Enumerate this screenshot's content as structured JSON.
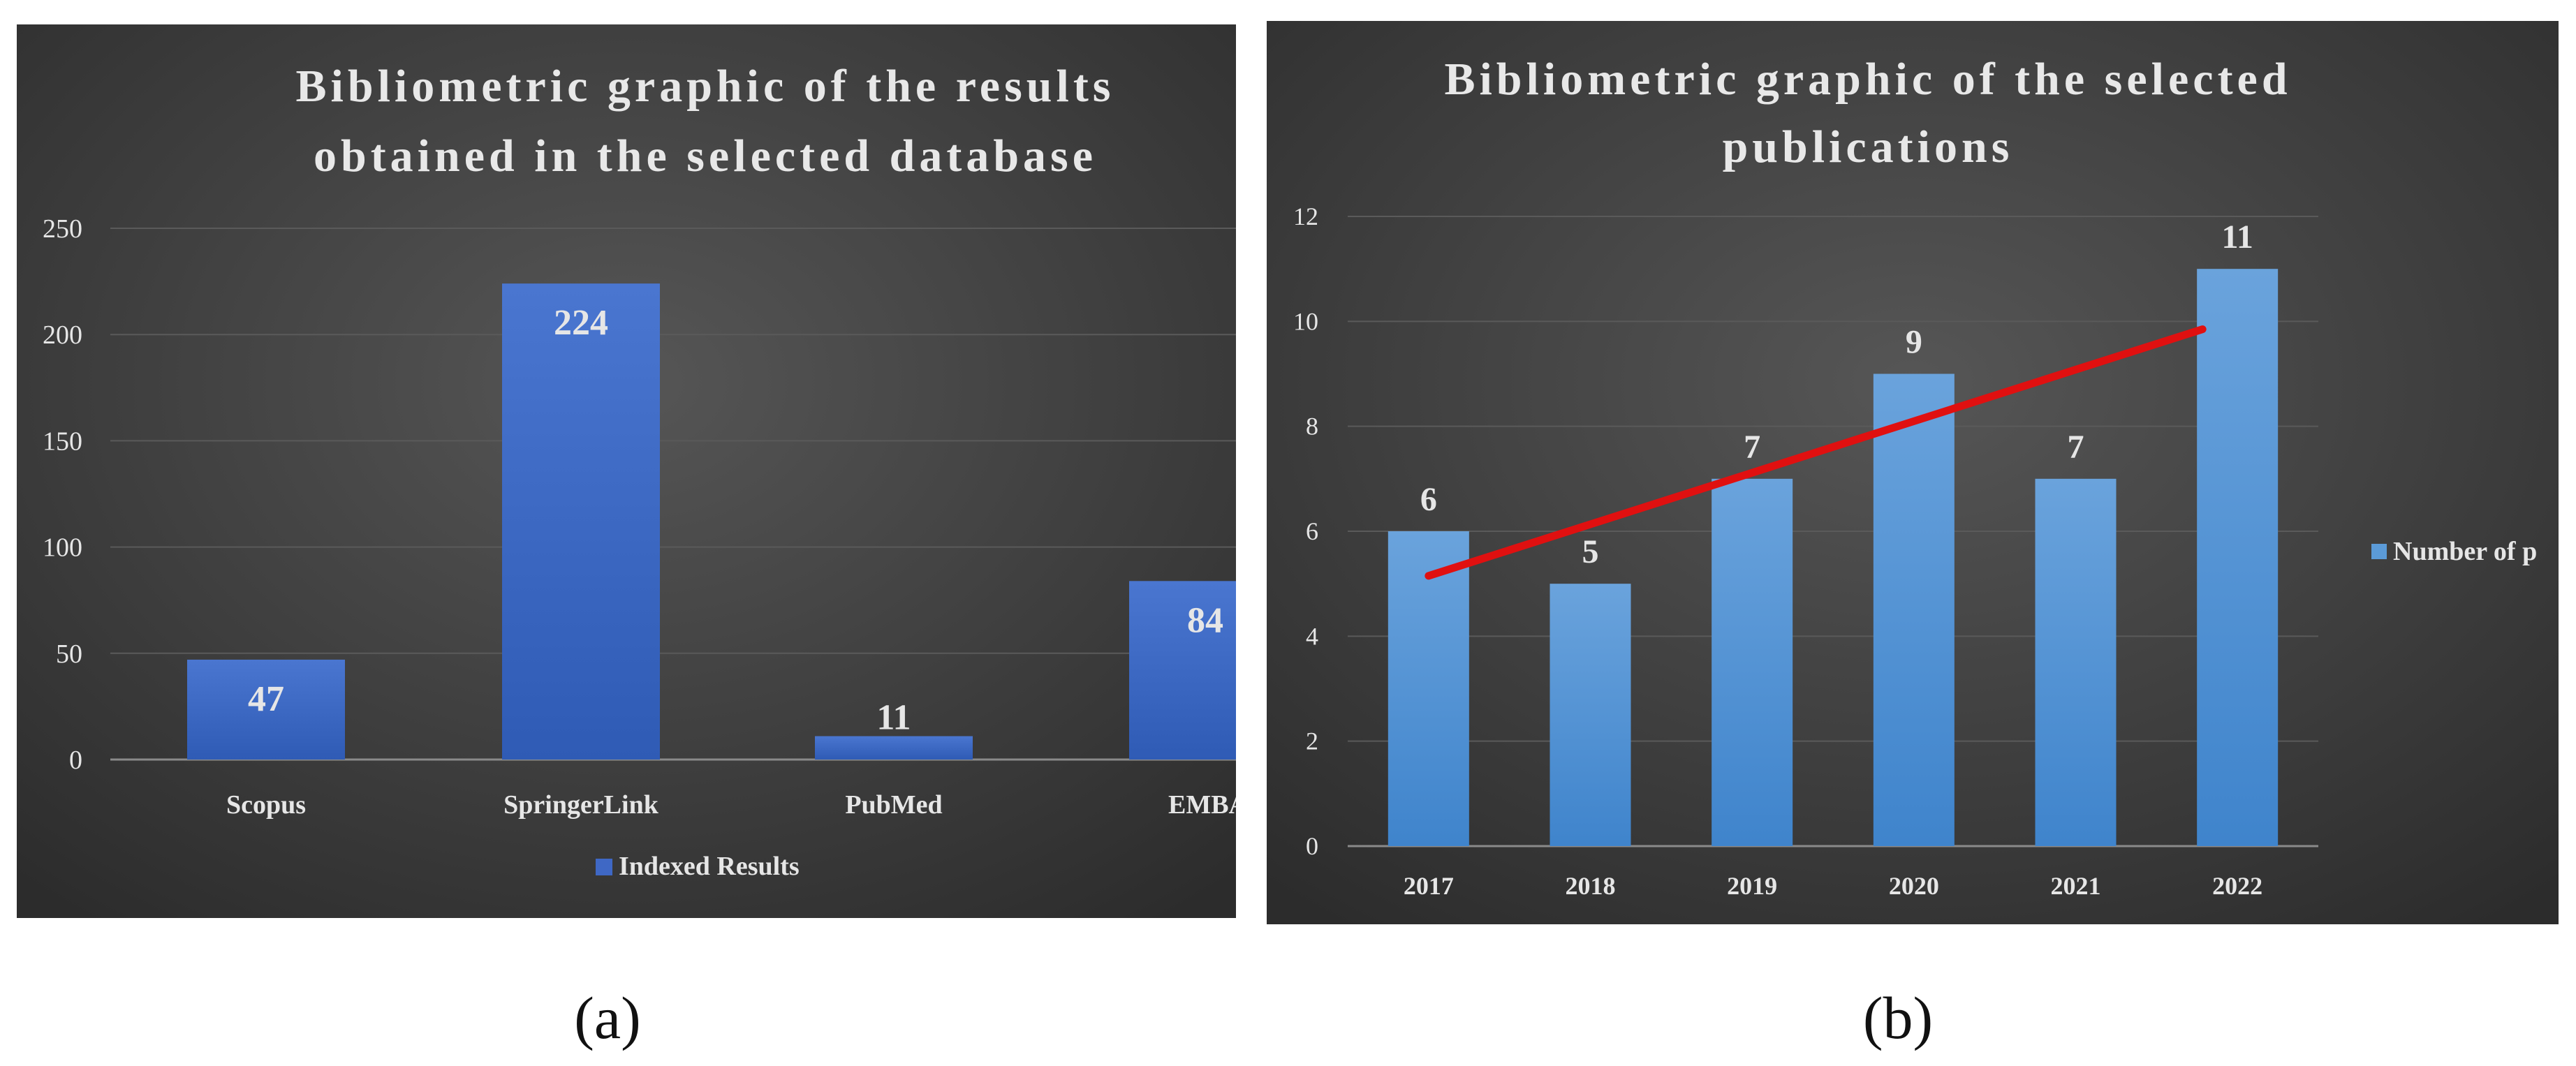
{
  "chart_data": [
    {
      "type": "bar",
      "panel_label": "a",
      "title_lines": [
        "Bibliometric graphic of the results",
        "obtained in the selected database"
      ],
      "categories": [
        "Scopus",
        "SpringerLink",
        "PubMed",
        "EMBA"
      ],
      "series": [
        {
          "name": "Indexed Results",
          "values": [
            47,
            224,
            11,
            84
          ]
        }
      ],
      "data_labels": [
        "47",
        "224",
        "11",
        "84"
      ],
      "ylim": [
        0,
        250
      ],
      "yticks": [
        "0",
        "50",
        "100",
        "150",
        "200",
        "250"
      ],
      "grid": true,
      "legend_position": "bottom",
      "colors": {
        "bar_top": "#4a76d0",
        "bar_bottom": "#2f5bb5",
        "background": "#3c3c3c"
      }
    },
    {
      "type": "bar",
      "panel_label": "b",
      "title_lines": [
        "Bibliometric graphic of the selected",
        "publications"
      ],
      "categories": [
        "2017",
        "2018",
        "2019",
        "2020",
        "2021",
        "2022"
      ],
      "series": [
        {
          "name": "Number of p",
          "values": [
            6,
            5,
            7,
            9,
            7,
            11
          ]
        }
      ],
      "data_labels": [
        "6",
        "5",
        "7",
        "9",
        "7",
        "11"
      ],
      "trendline": {
        "start": 5.15,
        "end": 9.85,
        "color": "#e01010"
      },
      "ylim": [
        0,
        12
      ],
      "yticks": [
        "0",
        "2",
        "4",
        "6",
        "8",
        "10",
        "12"
      ],
      "grid": true,
      "legend_position": "right",
      "colors": {
        "bar_top": "#6aa3dc",
        "bar_bottom": "#3f84cc",
        "background": "#3c3c3c"
      }
    }
  ],
  "captions": {
    "a": "(a)",
    "b": "(b)"
  }
}
